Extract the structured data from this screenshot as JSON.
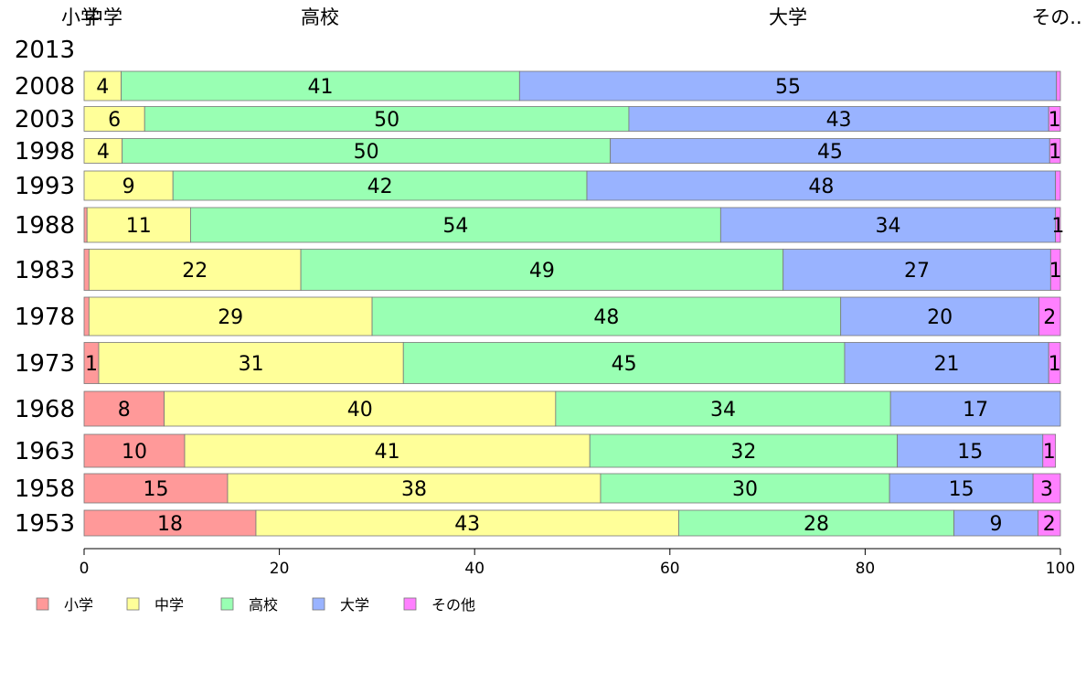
{
  "chart_data": {
    "type": "bar",
    "orientation": "horizontal",
    "stacked": true,
    "xlim": [
      0,
      100
    ],
    "x_ticks": [
      "0",
      "20",
      "40",
      "60",
      "80",
      "100"
    ],
    "categories": [
      "2013",
      "2008",
      "2003",
      "1998",
      "1993",
      "1988",
      "1983",
      "1978",
      "1973",
      "1968",
      "1963",
      "1958",
      "1953"
    ],
    "series": [
      {
        "name": "小学",
        "color": "#ff9999",
        "top_label": "小学",
        "values": [
          null,
          0,
          0,
          0,
          0,
          0.3,
          0.5,
          0.5,
          1.5,
          8.2,
          10.3,
          14.7,
          17.6
        ]
      },
      {
        "name": "中学",
        "color": "#ffff99",
        "top_label": "中学",
        "values": [
          null,
          3.8,
          6.2,
          3.9,
          9.1,
          10.6,
          21.7,
          29.0,
          31.2,
          40.1,
          41.5,
          38.2,
          43.3
        ]
      },
      {
        "name": "高校",
        "color": "#99ffb3",
        "top_label": "高校",
        "values": [
          null,
          40.8,
          49.6,
          50.0,
          42.4,
          54.3,
          49.4,
          48.0,
          45.2,
          34.3,
          31.5,
          29.6,
          28.2
        ]
      },
      {
        "name": "大学",
        "color": "#99b3ff",
        "top_label": "大学",
        "values": [
          null,
          55.0,
          43.0,
          45.0,
          48.0,
          34.3,
          27.4,
          20.3,
          20.9,
          17.4,
          14.9,
          14.7,
          8.6
        ]
      },
      {
        "name": "その他",
        "color": "#ff80ff",
        "top_label": "その..",
        "values": [
          null,
          0.4,
          1.2,
          1.1,
          0.5,
          0.5,
          1.0,
          2.2,
          1.2,
          0,
          1.3,
          2.8,
          2.3
        ]
      }
    ],
    "data_labels": [
      [],
      [
        "",
        "4",
        "41",
        "55",
        ""
      ],
      [
        "",
        "6",
        "50",
        "43",
        "1"
      ],
      [
        "",
        "4",
        "50",
        "45",
        "1"
      ],
      [
        "",
        "9",
        "42",
        "48",
        ""
      ],
      [
        "",
        "11",
        "54",
        "34",
        "1"
      ],
      [
        "",
        "22",
        "49",
        "27",
        "1"
      ],
      [
        "",
        "29",
        "48",
        "20",
        "2"
      ],
      [
        "1",
        "31",
        "45",
        "21",
        "1"
      ],
      [
        "8",
        "40",
        "34",
        "17",
        ""
      ],
      [
        "10",
        "41",
        "32",
        "15",
        "1"
      ],
      [
        "15",
        "38",
        "30",
        "15",
        "3"
      ],
      [
        "18",
        "43",
        "28",
        "9",
        "2"
      ]
    ],
    "legend": {
      "placement": "bottom-left",
      "entries": [
        "小学",
        "中学",
        "高校",
        "大学",
        "その他"
      ]
    },
    "grid": false
  }
}
